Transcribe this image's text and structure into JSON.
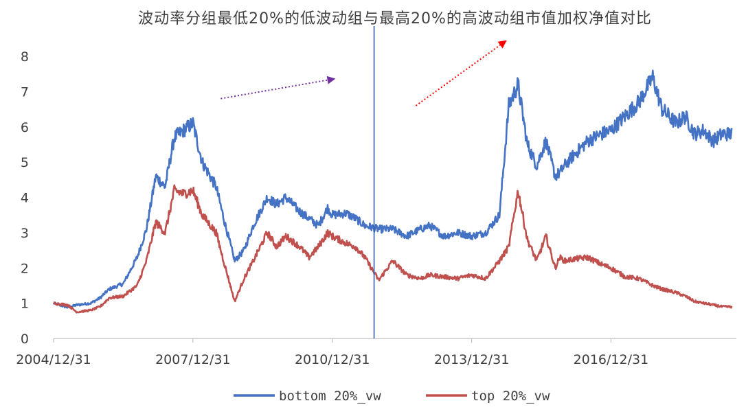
{
  "chart_data": {
    "type": "line",
    "title": "波动率分组最低20%的低波动组与最高20%的高波动组市值加权净值对比",
    "xlabel": "",
    "ylabel": "",
    "ylim": [
      0,
      8
    ],
    "y_ticks": [
      "0",
      "1",
      "2",
      "3",
      "4",
      "5",
      "6",
      "7",
      "8"
    ],
    "x_ticks": [
      "2004/12/31",
      "2007/12/31",
      "2010/12/31",
      "2013/12/31",
      "2016/12/31"
    ],
    "grid": false,
    "legend_position": "bottom",
    "series": [
      {
        "name": "bottom 20%_vw",
        "color": "#4472C4",
        "x": [
          2005.0,
          2005.3,
          2005.5,
          2005.8,
          2006.0,
          2006.2,
          2006.5,
          2006.8,
          2007.0,
          2007.2,
          2007.4,
          2007.6,
          2007.8,
          2008.0,
          2008.2,
          2008.5,
          2008.7,
          2008.9,
          2009.1,
          2009.3,
          2009.6,
          2009.8,
          2010.0,
          2010.3,
          2010.5,
          2010.7,
          2010.9,
          2011.0,
          2011.3,
          2011.5,
          2011.7,
          2012.0,
          2012.3,
          2012.6,
          2012.9,
          2013.1,
          2013.4,
          2013.7,
          2014.0,
          2014.3,
          2014.6,
          2014.8,
          2015.0,
          2015.2,
          2015.4,
          2015.6,
          2015.8,
          2015.9,
          2016.0,
          2016.2,
          2016.5,
          2016.8,
          2017.0,
          2017.3,
          2017.6,
          2017.9,
          2018.1,
          2018.4,
          2018.6,
          2018.8,
          2019.0,
          2019.2,
          2019.4,
          2019.6
        ],
        "values": [
          1.0,
          0.88,
          0.95,
          1.0,
          1.15,
          1.4,
          1.55,
          2.3,
          3.1,
          4.6,
          4.3,
          5.7,
          5.9,
          6.1,
          5.0,
          4.3,
          3.2,
          2.2,
          2.5,
          3.2,
          4.0,
          3.8,
          4.0,
          3.6,
          3.4,
          3.2,
          3.7,
          3.5,
          3.55,
          3.4,
          3.2,
          3.1,
          3.1,
          2.9,
          3.1,
          3.2,
          2.9,
          3.0,
          2.9,
          3.0,
          3.5,
          6.6,
          7.2,
          5.5,
          4.9,
          5.6,
          4.6,
          4.7,
          4.9,
          5.2,
          5.6,
          5.8,
          5.9,
          6.3,
          6.7,
          7.4,
          6.5,
          6.1,
          6.3,
          5.8,
          5.9,
          5.6,
          5.8,
          5.8
        ]
      },
      {
        "name": "top 20%_vw",
        "color": "#C0504D",
        "x": [
          2005.0,
          2005.3,
          2005.5,
          2005.8,
          2006.0,
          2006.2,
          2006.5,
          2006.8,
          2007.0,
          2007.2,
          2007.4,
          2007.6,
          2007.8,
          2008.0,
          2008.2,
          2008.5,
          2008.7,
          2008.9,
          2009.1,
          2009.3,
          2009.6,
          2009.8,
          2010.0,
          2010.3,
          2010.5,
          2010.7,
          2010.9,
          2011.0,
          2011.3,
          2011.5,
          2011.7,
          2012.0,
          2012.3,
          2012.6,
          2012.9,
          2013.1,
          2013.4,
          2013.7,
          2014.0,
          2014.3,
          2014.6,
          2014.8,
          2015.0,
          2015.2,
          2015.4,
          2015.6,
          2015.8,
          2015.9,
          2016.0,
          2016.2,
          2016.5,
          2016.8,
          2017.0,
          2017.3,
          2017.6,
          2017.9,
          2018.1,
          2018.4,
          2018.6,
          2018.8,
          2019.0,
          2019.2,
          2019.4,
          2019.6
        ],
        "values": [
          1.0,
          0.95,
          0.75,
          0.8,
          0.9,
          1.15,
          1.2,
          1.5,
          2.2,
          3.3,
          3.0,
          4.2,
          4.1,
          4.2,
          3.5,
          3.0,
          2.0,
          1.05,
          1.7,
          2.2,
          3.0,
          2.6,
          2.9,
          2.6,
          2.3,
          2.6,
          3.0,
          2.9,
          2.7,
          2.6,
          2.3,
          1.65,
          2.2,
          1.8,
          1.7,
          1.8,
          1.75,
          1.7,
          1.8,
          1.7,
          2.2,
          2.6,
          4.2,
          2.8,
          2.2,
          2.9,
          2.0,
          2.3,
          2.2,
          2.25,
          2.3,
          2.1,
          2.0,
          1.75,
          1.7,
          1.5,
          1.4,
          1.3,
          1.2,
          1.05,
          1.0,
          0.95,
          0.9,
          0.9
        ]
      }
    ],
    "annotations": [
      {
        "type": "vertical-line",
        "x": 2011.9,
        "color": "#2E5DA8"
      },
      {
        "type": "arrow",
        "style": "dotted",
        "color": "#7030A0",
        "from": [
          2008.6,
          6.8
        ],
        "to": [
          2011.0,
          7.35
        ]
      },
      {
        "type": "arrow",
        "style": "dotted",
        "color": "#FF0000",
        "from": [
          2012.8,
          6.6
        ],
        "to": [
          2014.7,
          8.4
        ]
      }
    ]
  }
}
